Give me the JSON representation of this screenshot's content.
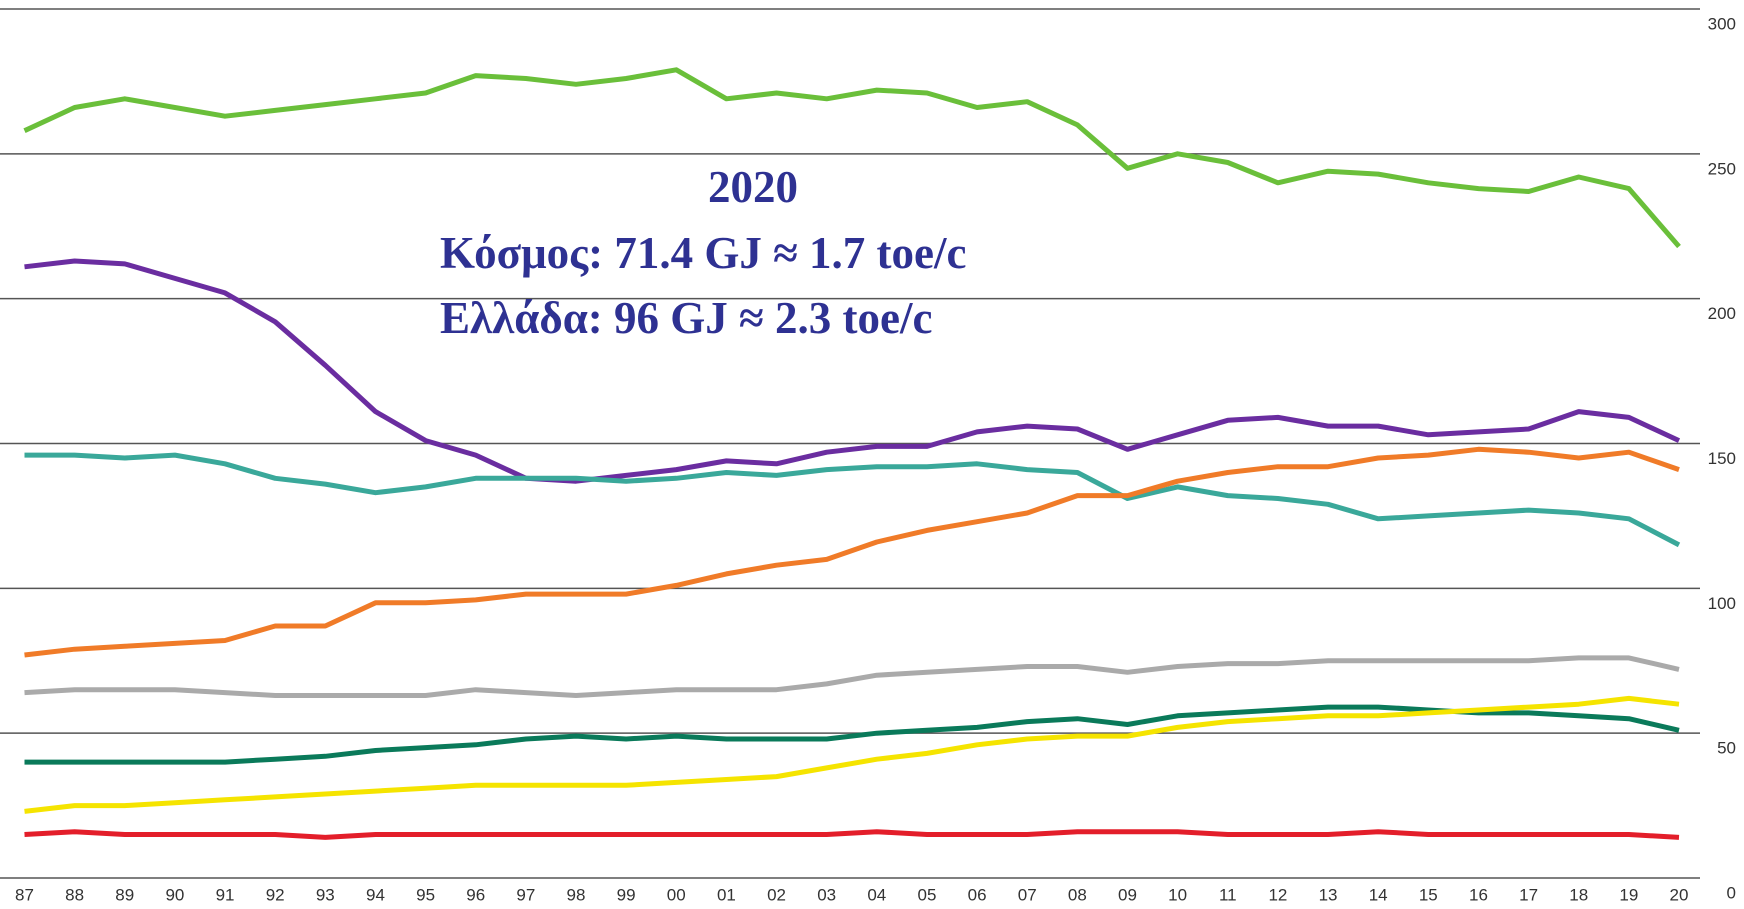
{
  "chart_data": {
    "type": "line",
    "annotations": [
      "2020",
      "Κόσμος: 71.4 GJ ≈ 1.7 toe/c",
      "Ελλάδα: 96 GJ ≈ 2.3 toe/c"
    ],
    "categories": [
      "87",
      "88",
      "89",
      "90",
      "91",
      "92",
      "93",
      "94",
      "95",
      "96",
      "97",
      "98",
      "99",
      "00",
      "01",
      "02",
      "03",
      "04",
      "05",
      "06",
      "07",
      "08",
      "09",
      "10",
      "11",
      "12",
      "13",
      "14",
      "15",
      "16",
      "17",
      "18",
      "19",
      "20"
    ],
    "ylim": [
      0,
      300
    ],
    "yticks": [
      0,
      50,
      100,
      150,
      200,
      250,
      300
    ],
    "grid": true,
    "series": [
      {
        "color": "#6abf3a",
        "values": [
          258,
          266,
          269,
          266,
          263,
          265,
          267,
          269,
          271,
          277,
          276,
          274,
          276,
          279,
          269,
          271,
          269,
          272,
          271,
          266,
          268,
          260,
          245,
          250,
          247,
          240,
          244,
          243,
          240,
          238,
          237,
          242,
          238,
          218
        ]
      },
      {
        "color": "#6a2da0",
        "values": [
          211,
          213,
          212,
          207,
          202,
          192,
          177,
          161,
          151,
          146,
          138,
          137,
          139,
          141,
          144,
          143,
          147,
          149,
          149,
          154,
          156,
          155,
          148,
          153,
          158,
          159,
          156,
          156,
          153,
          154,
          155,
          161,
          159,
          151
        ]
      },
      {
        "color": "#3aa89a",
        "values": [
          146,
          146,
          145,
          146,
          143,
          138,
          136,
          133,
          135,
          138,
          138,
          138,
          137,
          138,
          140,
          139,
          141,
          142,
          142,
          143,
          141,
          140,
          131,
          135,
          132,
          131,
          129,
          124,
          125,
          126,
          127,
          126,
          124,
          115
        ]
      },
      {
        "color": "#f07b28",
        "values": [
          77,
          79,
          80,
          81,
          82,
          87,
          87,
          95,
          95,
          96,
          98,
          98,
          98,
          101,
          105,
          108,
          110,
          116,
          120,
          123,
          126,
          132,
          132,
          137,
          140,
          142,
          142,
          145,
          146,
          148,
          147,
          145,
          147,
          141
        ]
      },
      {
        "color": "#aaaaaa",
        "values": [
          64,
          65,
          65,
          65,
          64,
          63,
          63,
          63,
          63,
          65,
          64,
          63,
          64,
          65,
          65,
          65,
          67,
          70,
          71,
          72,
          73,
          73,
          71,
          73,
          74,
          74,
          75,
          75,
          75,
          75,
          75,
          76,
          76,
          72
        ]
      },
      {
        "color": "#0a7a5a",
        "values": [
          40,
          40,
          40,
          40,
          40,
          41,
          42,
          44,
          45,
          46,
          48,
          49,
          48,
          49,
          48,
          48,
          48,
          50,
          51,
          52,
          54,
          55,
          53,
          56,
          57,
          58,
          59,
          59,
          58,
          57,
          57,
          56,
          55,
          51
        ]
      },
      {
        "color": "#f5e400",
        "values": [
          23,
          25,
          25,
          26,
          27,
          28,
          29,
          30,
          31,
          32,
          32,
          32,
          32,
          33,
          34,
          35,
          38,
          41,
          43,
          46,
          48,
          49,
          49,
          52,
          54,
          55,
          56,
          56,
          57,
          58,
          59,
          60,
          62,
          60
        ]
      },
      {
        "color": "#e31e2a",
        "values": [
          15,
          16,
          15,
          15,
          15,
          15,
          14,
          15,
          15,
          15,
          15,
          15,
          15,
          15,
          15,
          15,
          15,
          16,
          15,
          15,
          15,
          16,
          16,
          16,
          15,
          15,
          15,
          16,
          15,
          15,
          15,
          15,
          15,
          14
        ]
      }
    ]
  }
}
